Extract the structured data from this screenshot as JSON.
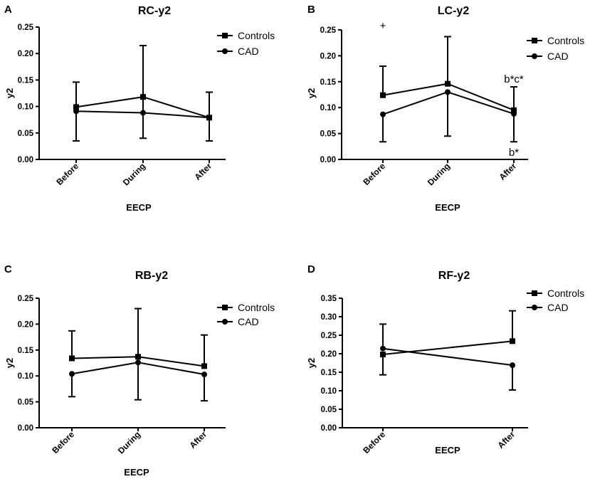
{
  "chart_data": [
    {
      "panel": "A",
      "type": "line",
      "title": "RC-y2",
      "xlabel": "EECP",
      "ylabel": "y2",
      "categories": [
        "Before",
        "During",
        "After"
      ],
      "ylim": [
        0,
        0.25
      ],
      "yticks": [
        "0.00",
        "0.05",
        "0.10",
        "0.15",
        "0.20",
        "0.25"
      ],
      "legend_position": "top-right",
      "series": [
        {
          "name": "Controls",
          "marker": "square",
          "values": [
            0.099,
            0.118,
            0.079
          ],
          "err_low": [
            0.035,
            0.04,
            0.035
          ],
          "err_high": [
            0.146,
            0.215,
            0.127
          ]
        },
        {
          "name": "CAD",
          "marker": "circle",
          "values": [
            0.091,
            0.088,
            0.079
          ],
          "err_low": null,
          "err_high": null
        }
      ],
      "annotations": []
    },
    {
      "panel": "B",
      "type": "line",
      "title": "LC-y2",
      "xlabel": "EECP",
      "ylabel": "y2",
      "categories": [
        "Before",
        "During",
        "After"
      ],
      "ylim": [
        0,
        0.25
      ],
      "yticks": [
        "0.00",
        "0.05",
        "0.10",
        "0.15",
        "0.20",
        "0.25"
      ],
      "legend_position": "top-right",
      "series": [
        {
          "name": "Controls",
          "marker": "square",
          "values": [
            0.124,
            0.146,
            0.095
          ],
          "err_low": null,
          "err_high": [
            0.18,
            0.237,
            0.14
          ]
        },
        {
          "name": "CAD",
          "marker": "circle",
          "values": [
            0.087,
            0.13,
            0.088
          ],
          "err_low": [
            0.034,
            0.045,
            0.034
          ],
          "err_high": null
        }
      ],
      "annotations": [
        {
          "text": "+",
          "x_index": 0,
          "y": 0.258
        },
        {
          "text": "b*c*",
          "x_index": 2,
          "y": 0.155
        },
        {
          "text": "b*",
          "x_index": 2,
          "y": 0.014
        }
      ]
    },
    {
      "panel": "C",
      "type": "line",
      "title": "RB-y2",
      "xlabel": "EECP",
      "ylabel": "y2",
      "categories": [
        "Before",
        "During",
        "After"
      ],
      "ylim": [
        0,
        0.25
      ],
      "yticks": [
        "0.00",
        "0.05",
        "0.10",
        "0.15",
        "0.20",
        "0.25"
      ],
      "legend_position": "top-right",
      "series": [
        {
          "name": "Controls",
          "marker": "square",
          "values": [
            0.134,
            0.137,
            0.119
          ],
          "err_low": null,
          "err_high": [
            0.187,
            0.23,
            0.179
          ]
        },
        {
          "name": "CAD",
          "marker": "circle",
          "values": [
            0.104,
            0.126,
            0.103
          ],
          "err_low": [
            0.06,
            0.054,
            0.052
          ],
          "err_high": null
        }
      ],
      "annotations": []
    },
    {
      "panel": "D",
      "type": "line",
      "title": "RF-y2",
      "xlabel": "EECP",
      "ylabel": "y2",
      "categories": [
        "Before",
        "After"
      ],
      "ylim": [
        0,
        0.35
      ],
      "yticks": [
        "0.00",
        "0.05",
        "0.10",
        "0.15",
        "0.20",
        "0.25",
        "0.30",
        "0.35"
      ],
      "legend_position": "top-right",
      "series": [
        {
          "name": "Controls",
          "marker": "square",
          "values": [
            0.198,
            0.234
          ],
          "err_low": [
            0.143,
            null
          ],
          "err_high": [
            null,
            0.316
          ]
        },
        {
          "name": "CAD",
          "marker": "circle",
          "values": [
            0.214,
            0.169
          ],
          "err_low": [
            null,
            0.102
          ],
          "err_high": [
            0.28,
            null
          ]
        }
      ],
      "annotations": []
    }
  ]
}
